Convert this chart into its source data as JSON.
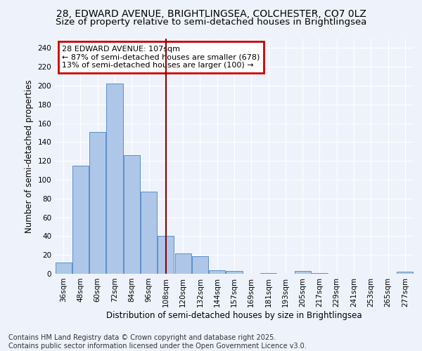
{
  "title": "28, EDWARD AVENUE, BRIGHTLINGSEA, COLCHESTER, CO7 0LZ",
  "subtitle": "Size of property relative to semi-detached houses in Brightlingsea",
  "xlabel": "Distribution of semi-detached houses by size in Brightlingsea",
  "ylabel": "Number of semi-detached properties",
  "footer_line1": "Contains HM Land Registry data © Crown copyright and database right 2025.",
  "footer_line2": "Contains public sector information licensed under the Open Government Licence v3.0.",
  "categories": [
    "36sqm",
    "48sqm",
    "60sqm",
    "72sqm",
    "84sqm",
    "96sqm",
    "108sqm",
    "120sqm",
    "132sqm",
    "144sqm",
    "157sqm",
    "169sqm",
    "181sqm",
    "193sqm",
    "205sqm",
    "217sqm",
    "229sqm",
    "241sqm",
    "253sqm",
    "265sqm",
    "277sqm"
  ],
  "values": [
    12,
    115,
    151,
    202,
    126,
    87,
    40,
    22,
    19,
    4,
    3,
    0,
    1,
    0,
    3,
    1,
    0,
    0,
    0,
    0,
    2
  ],
  "bar_color": "#aec6e8",
  "bar_edge_color": "#5b8fc9",
  "highlight_index": 6,
  "vline_color": "#8b0000",
  "annotation_text": "28 EDWARD AVENUE: 107sqm\n← 87% of semi-detached houses are smaller (678)\n13% of semi-detached houses are larger (100) →",
  "annotation_box_color": "#ffffff",
  "annotation_box_edge": "#cc0000",
  "ylim": [
    0,
    250
  ],
  "yticks": [
    0,
    20,
    40,
    60,
    80,
    100,
    120,
    140,
    160,
    180,
    200,
    220,
    240
  ],
  "bg_color": "#eef3fb",
  "grid_color": "#ffffff",
  "title_fontsize": 10,
  "subtitle_fontsize": 9.5,
  "axis_label_fontsize": 8.5,
  "tick_fontsize": 7.5,
  "annotation_fontsize": 8,
  "footer_fontsize": 7
}
